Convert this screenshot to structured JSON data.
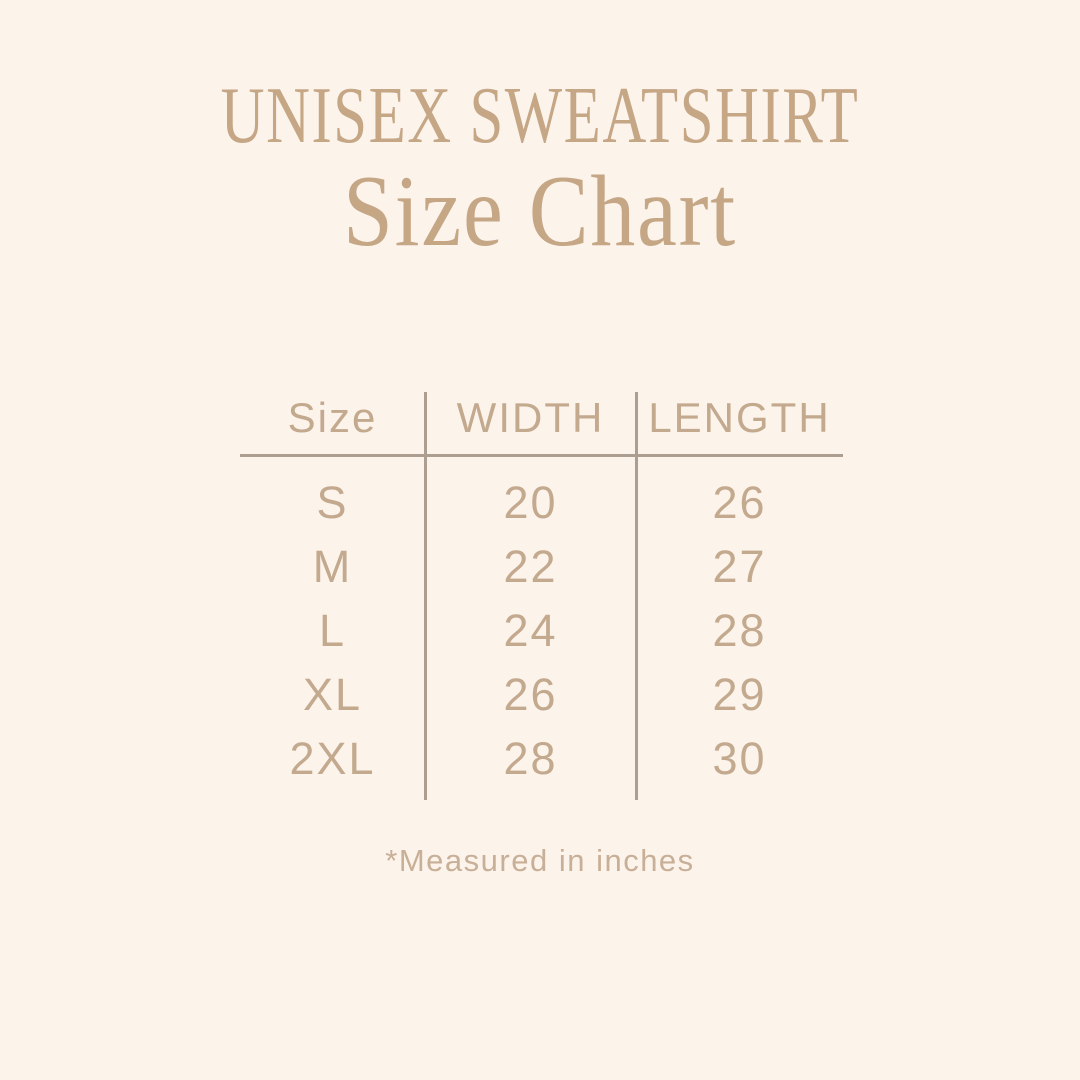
{
  "theme": {
    "background": "#FCF3EB",
    "title_color": "#C5A685",
    "table_text_color": "#C3A98E",
    "line_color": "#AC9E90",
    "footnote_color": "#C8AF97"
  },
  "header": {
    "product_line": "UNISEX SWEATSHIRT",
    "title": "Size Chart"
  },
  "chart_data": {
    "type": "table",
    "title": "UNISEX SWEATSHIRT Size Chart",
    "columns": [
      "Size",
      "WIDTH",
      "LENGTH"
    ],
    "rows": [
      {
        "size": "S",
        "width": "20",
        "length": "26"
      },
      {
        "size": "M",
        "width": "22",
        "length": "27"
      },
      {
        "size": "L",
        "width": "24",
        "length": "28"
      },
      {
        "size": "XL",
        "width": "26",
        "length": "29"
      },
      {
        "size": "2XL",
        "width": "28",
        "length": "30"
      }
    ],
    "units": "inches",
    "footnote": "*Measured in inches",
    "layout": {
      "grid": "off",
      "header_divider": "horizontal-rule",
      "column_dividers": "vertical-rules"
    }
  }
}
